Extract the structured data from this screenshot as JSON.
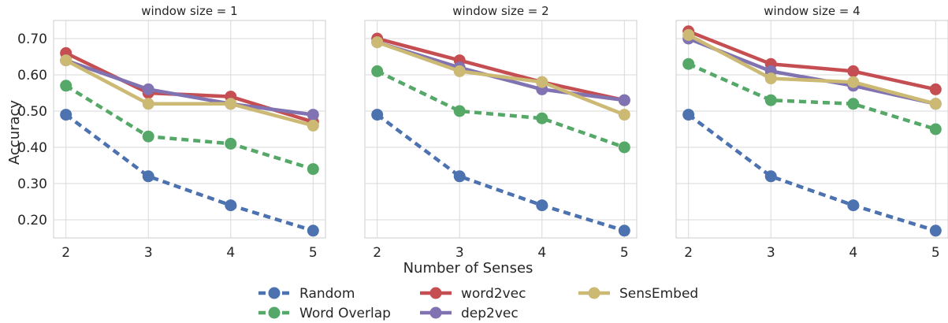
{
  "chart_data": {
    "type": "line",
    "ylabel": "Accuracy",
    "xlabel": "Number of Senses",
    "x": [
      2,
      3,
      4,
      5
    ],
    "xlim": [
      1.85,
      5.15
    ],
    "ylim": [
      0.15,
      0.75
    ],
    "y_ticks": [
      "0.20",
      "0.30",
      "0.40",
      "0.50",
      "0.60",
      "0.70"
    ],
    "y_tick_values": [
      0.2,
      0.3,
      0.4,
      0.5,
      0.6,
      0.7
    ],
    "x_ticks": [
      "2",
      "3",
      "4",
      "5"
    ],
    "grid": true,
    "legend_position": "bottom-center",
    "panels": [
      {
        "title": "window size = 1",
        "series": [
          {
            "key": "random",
            "values": [
              0.49,
              0.32,
              0.24,
              0.17
            ]
          },
          {
            "key": "word_overlap",
            "values": [
              0.57,
              0.43,
              0.41,
              0.34
            ]
          },
          {
            "key": "word2vec",
            "values": [
              0.66,
              0.55,
              0.54,
              0.47
            ]
          },
          {
            "key": "dep2vec",
            "values": [
              0.64,
              0.56,
              0.52,
              0.49
            ]
          },
          {
            "key": "sensembed",
            "values": [
              0.64,
              0.52,
              0.52,
              0.46
            ]
          }
        ]
      },
      {
        "title": "window size = 2",
        "series": [
          {
            "key": "random",
            "values": [
              0.49,
              0.32,
              0.24,
              0.17
            ]
          },
          {
            "key": "word_overlap",
            "values": [
              0.61,
              0.5,
              0.48,
              0.4
            ]
          },
          {
            "key": "word2vec",
            "values": [
              0.7,
              0.64,
              0.58,
              0.53
            ]
          },
          {
            "key": "dep2vec",
            "values": [
              0.69,
              0.62,
              0.56,
              0.53
            ]
          },
          {
            "key": "sensembed",
            "values": [
              0.69,
              0.61,
              0.58,
              0.49
            ]
          }
        ]
      },
      {
        "title": "window size = 4",
        "series": [
          {
            "key": "random",
            "values": [
              0.49,
              0.32,
              0.24,
              0.17
            ]
          },
          {
            "key": "word_overlap",
            "values": [
              0.63,
              0.53,
              0.52,
              0.45
            ]
          },
          {
            "key": "word2vec",
            "values": [
              0.72,
              0.63,
              0.61,
              0.56
            ]
          },
          {
            "key": "dep2vec",
            "values": [
              0.7,
              0.61,
              0.57,
              0.52
            ]
          },
          {
            "key": "sensembed",
            "values": [
              0.71,
              0.59,
              0.58,
              0.52
            ]
          }
        ]
      }
    ],
    "legend": [
      {
        "key": "random",
        "name": "Random",
        "color": "#4C72B0",
        "dashed": true
      },
      {
        "key": "word_overlap",
        "name": "Word Overlap",
        "color": "#55A868",
        "dashed": true
      },
      {
        "key": "word2vec",
        "name": "word2vec",
        "color": "#C44E52",
        "dashed": false
      },
      {
        "key": "dep2vec",
        "name": "dep2vec",
        "color": "#8172B2",
        "dashed": false
      },
      {
        "key": "sensembed",
        "name": "SensEmbed",
        "color": "#CCB974",
        "dashed": false
      }
    ]
  }
}
